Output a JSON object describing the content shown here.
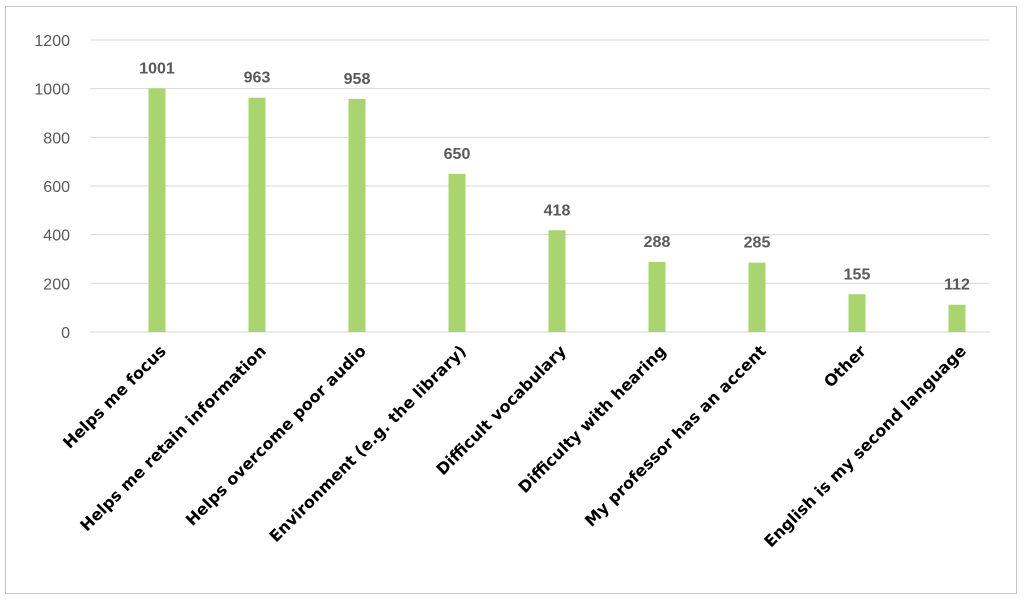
{
  "chart_data": {
    "type": "bar",
    "categories": [
      "Helps me focus",
      "Helps me retain information",
      "Helps overcome poor audio",
      "Environment (e.g. the library)",
      "Difficult vocabulary",
      "Difficulty with hearing",
      "My professor has an accent",
      "Other",
      "English is my second language"
    ],
    "values": [
      1001,
      963,
      958,
      650,
      418,
      288,
      285,
      155,
      112
    ],
    "ylim": [
      0,
      1200
    ],
    "yticks": [
      0,
      200,
      400,
      600,
      800,
      1000,
      1200
    ],
    "grid": true,
    "bar_color": "#a9d46f",
    "legend": "none"
  }
}
